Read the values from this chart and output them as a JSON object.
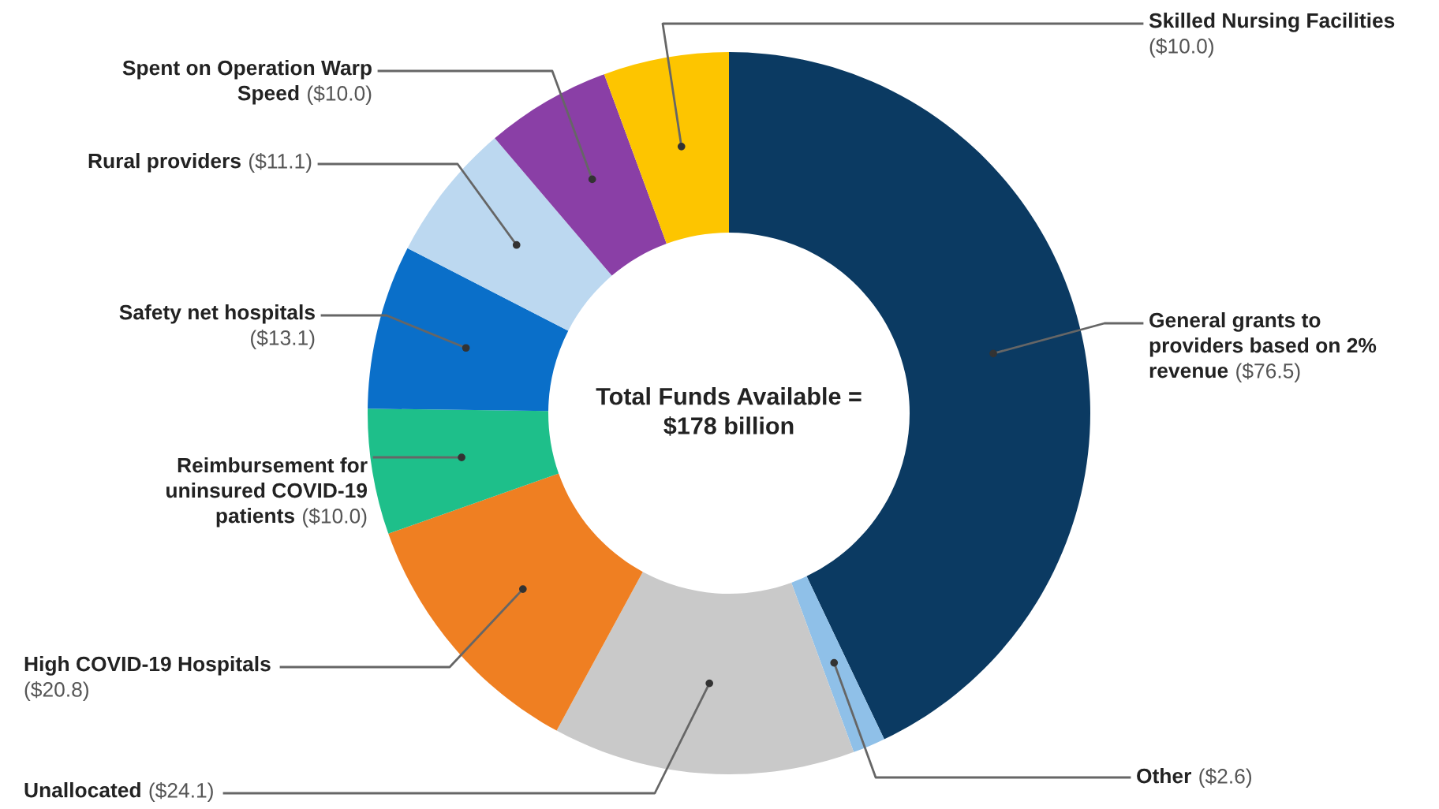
{
  "chart_data": {
    "type": "donut",
    "categories": [
      "General grants to\nproviders based on 2%\nrevenue",
      "Other",
      "Unallocated",
      "High COVID-19 Hospitals",
      "Reimbursement for\nuninsured COVID-19\npatients",
      "Safety net hospitals",
      "Rural providers",
      "Spent on Operation Warp\nSpeed",
      "Skilled Nursing Facilities"
    ],
    "values": [
      76.5,
      2.6,
      24.1,
      20.8,
      10.0,
      13.1,
      11.1,
      10.0,
      10.0
    ],
    "colors": [
      "#0b3a62",
      "#8fc0e8",
      "#c9c9c9",
      "#ef7f22",
      "#1ebf8a",
      "#0a6fc9",
      "#bcd8f0",
      "#8a3fa6",
      "#fdc500"
    ],
    "value_labels": [
      "($76.5)",
      "($2.6)",
      "($24.1)",
      "($20.8)",
      "($10.0)",
      "($13.1)",
      "($11.1)",
      "($10.0)",
      "($10.0)"
    ],
    "annotations": [
      "Total Funds Available =\n$178 billion"
    ]
  }
}
